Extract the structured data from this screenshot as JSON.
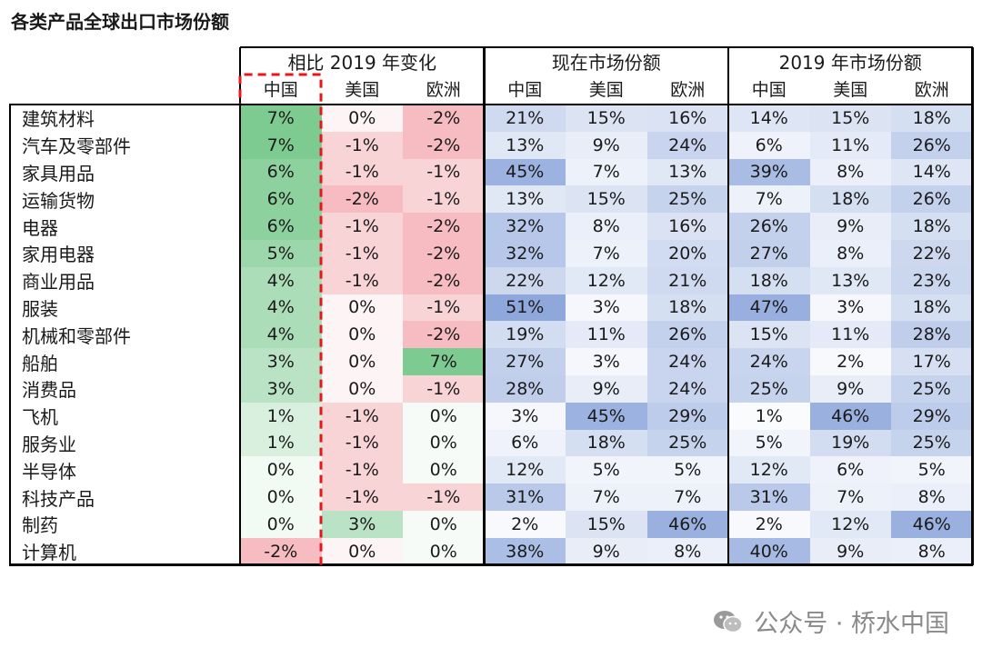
{
  "title": "各类产品全球出口市场份额",
  "watermark": "公众号 · 桥水中国",
  "colors": {
    "pos": "#7ecb92",
    "neg": "#f3a8ae",
    "share": "#8fa8dc",
    "highlight": "#e8161b"
  },
  "chart_data": {
    "type": "table",
    "groups": [
      "相比 2019 年变化",
      "现在市场份额",
      "2019 年市场份额"
    ],
    "subcolumns": [
      "中国",
      "美国",
      "欧洲"
    ],
    "rows": [
      {
        "label": "建筑材料",
        "change": [
          "7%",
          "0%",
          "-2%"
        ],
        "now": [
          "21%",
          "15%",
          "16%"
        ],
        "y2019": [
          "14%",
          "15%",
          "18%"
        ]
      },
      {
        "label": "汽车及零部件",
        "change": [
          "7%",
          "-1%",
          "-2%"
        ],
        "now": [
          "13%",
          "9%",
          "24%"
        ],
        "y2019": [
          "6%",
          "11%",
          "26%"
        ]
      },
      {
        "label": "家具用品",
        "change": [
          "6%",
          "-1%",
          "-1%"
        ],
        "now": [
          "45%",
          "7%",
          "13%"
        ],
        "y2019": [
          "39%",
          "8%",
          "14%"
        ]
      },
      {
        "label": "运输货物",
        "change": [
          "6%",
          "-2%",
          "-1%"
        ],
        "now": [
          "13%",
          "15%",
          "25%"
        ],
        "y2019": [
          "7%",
          "18%",
          "26%"
        ]
      },
      {
        "label": "电器",
        "change": [
          "6%",
          "-1%",
          "-2%"
        ],
        "now": [
          "32%",
          "8%",
          "16%"
        ],
        "y2019": [
          "26%",
          "9%",
          "18%"
        ]
      },
      {
        "label": "家用电器",
        "change": [
          "5%",
          "-1%",
          "-2%"
        ],
        "now": [
          "32%",
          "7%",
          "20%"
        ],
        "y2019": [
          "27%",
          "8%",
          "22%"
        ]
      },
      {
        "label": "商业用品",
        "change": [
          "4%",
          "-1%",
          "-2%"
        ],
        "now": [
          "22%",
          "12%",
          "21%"
        ],
        "y2019": [
          "18%",
          "13%",
          "23%"
        ]
      },
      {
        "label": "服装",
        "change": [
          "4%",
          "0%",
          "-1%"
        ],
        "now": [
          "51%",
          "3%",
          "18%"
        ],
        "y2019": [
          "47%",
          "3%",
          "18%"
        ]
      },
      {
        "label": "机械和零部件",
        "change": [
          "4%",
          "0%",
          "-2%"
        ],
        "now": [
          "19%",
          "11%",
          "26%"
        ],
        "y2019": [
          "15%",
          "11%",
          "28%"
        ]
      },
      {
        "label": "船舶",
        "change": [
          "3%",
          "0%",
          "7%"
        ],
        "now": [
          "27%",
          "3%",
          "24%"
        ],
        "y2019": [
          "24%",
          "2%",
          "17%"
        ]
      },
      {
        "label": "消费品",
        "change": [
          "3%",
          "0%",
          "-1%"
        ],
        "now": [
          "28%",
          "9%",
          "24%"
        ],
        "y2019": [
          "25%",
          "9%",
          "25%"
        ]
      },
      {
        "label": "飞机",
        "change": [
          "1%",
          "-1%",
          "0%"
        ],
        "now": [
          "3%",
          "45%",
          "29%"
        ],
        "y2019": [
          "1%",
          "46%",
          "29%"
        ]
      },
      {
        "label": "服务业",
        "change": [
          "1%",
          "-1%",
          "0%"
        ],
        "now": [
          "6%",
          "18%",
          "25%"
        ],
        "y2019": [
          "5%",
          "19%",
          "25%"
        ]
      },
      {
        "label": "半导体",
        "change": [
          "0%",
          "-1%",
          "0%"
        ],
        "now": [
          "12%",
          "5%",
          "5%"
        ],
        "y2019": [
          "12%",
          "6%",
          "5%"
        ]
      },
      {
        "label": "科技产品",
        "change": [
          "0%",
          "-1%",
          "-1%"
        ],
        "now": [
          "31%",
          "7%",
          "7%"
        ],
        "y2019": [
          "31%",
          "7%",
          "8%"
        ]
      },
      {
        "label": "制药",
        "change": [
          "0%",
          "3%",
          "0%"
        ],
        "now": [
          "2%",
          "15%",
          "46%"
        ],
        "y2019": [
          "2%",
          "12%",
          "46%"
        ]
      },
      {
        "label": "计算机",
        "change": [
          "-2%",
          "0%",
          "0%"
        ],
        "now": [
          "38%",
          "9%",
          "8%"
        ],
        "y2019": [
          "40%",
          "9%",
          "8%"
        ]
      }
    ]
  }
}
